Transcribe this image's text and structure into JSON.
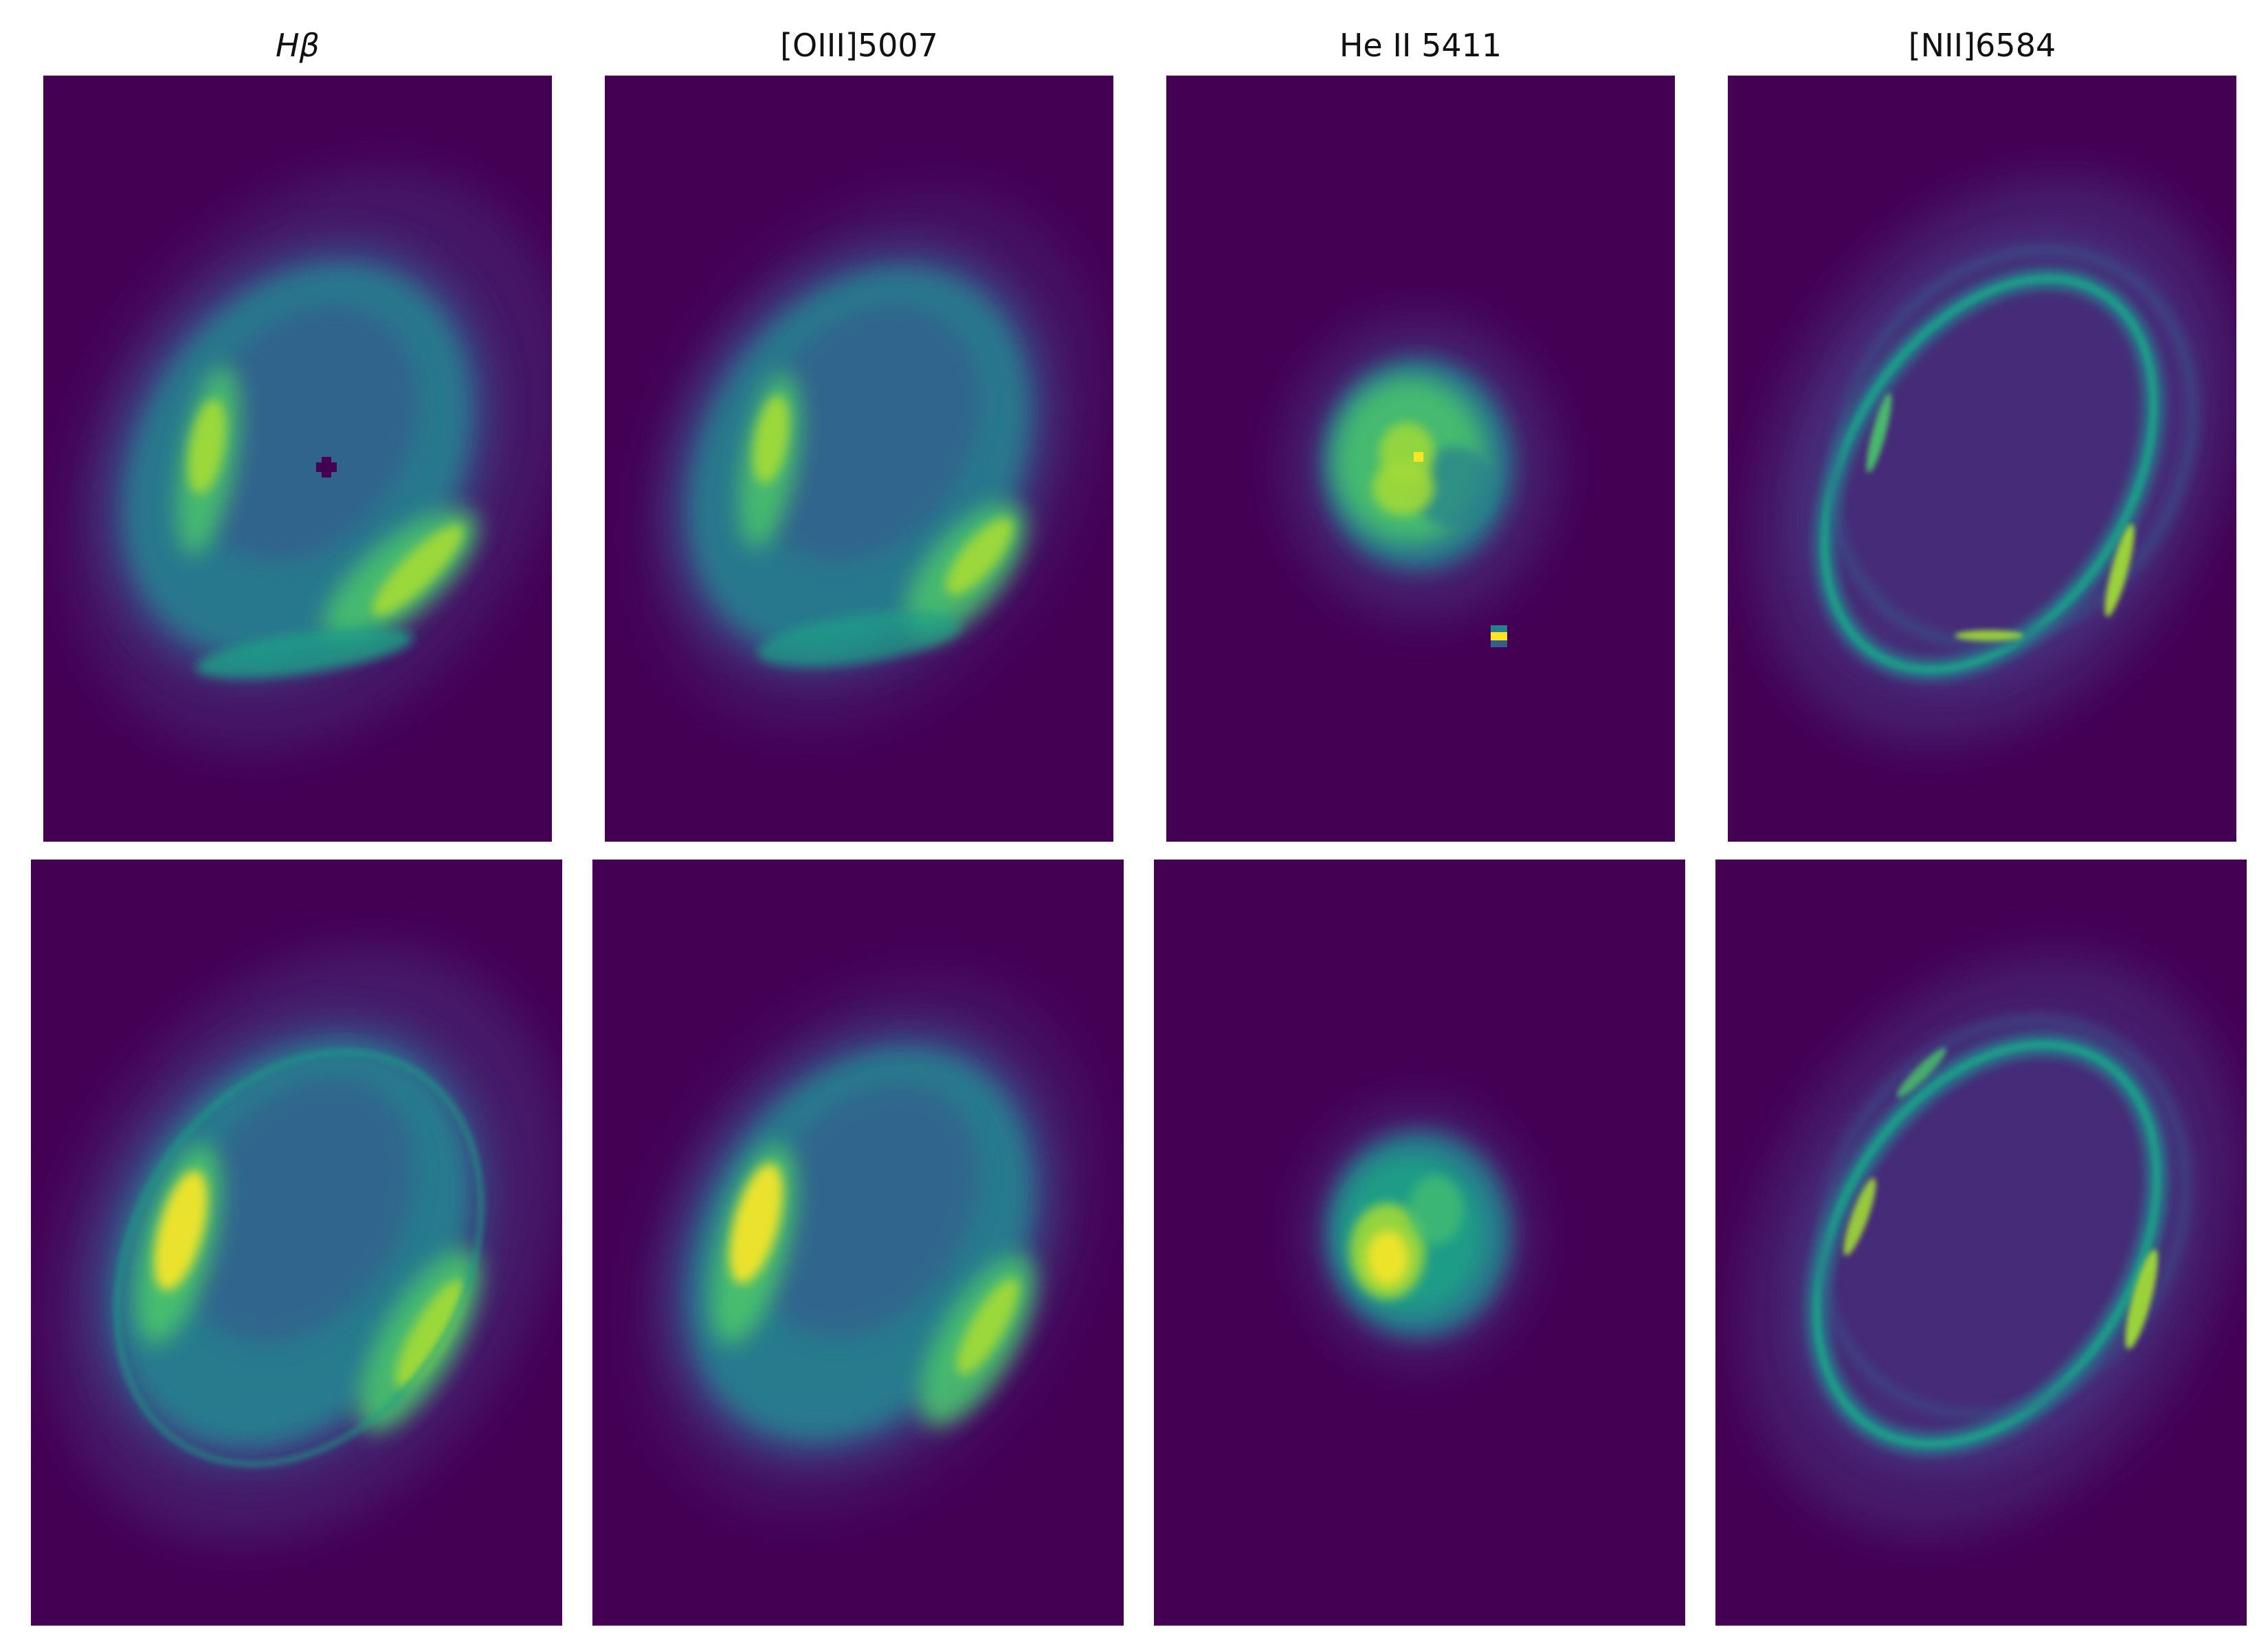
{
  "figure": {
    "colormap": [
      "#440154",
      "#46327e",
      "#365c8d",
      "#277f8e",
      "#1fa187",
      "#4ac16d",
      "#a0da39",
      "#fde725"
    ],
    "columns": [
      {
        "id": "hbeta",
        "title": "Hβ"
      },
      {
        "id": "oiii",
        "title": "[OIII]5007"
      },
      {
        "id": "heii",
        "title": "He II 5411"
      },
      {
        "id": "nii",
        "title": "[NII]6584"
      }
    ],
    "rows": [
      {
        "id": "row-observed",
        "panels": [
          "Hbeta-observed",
          "OIII-observed",
          "HeII-observed",
          "NII-observed"
        ]
      },
      {
        "id": "row-model",
        "panels": [
          "Hbeta-model",
          "OIII-model",
          "HeII-model",
          "NII-model"
        ]
      }
    ]
  }
}
